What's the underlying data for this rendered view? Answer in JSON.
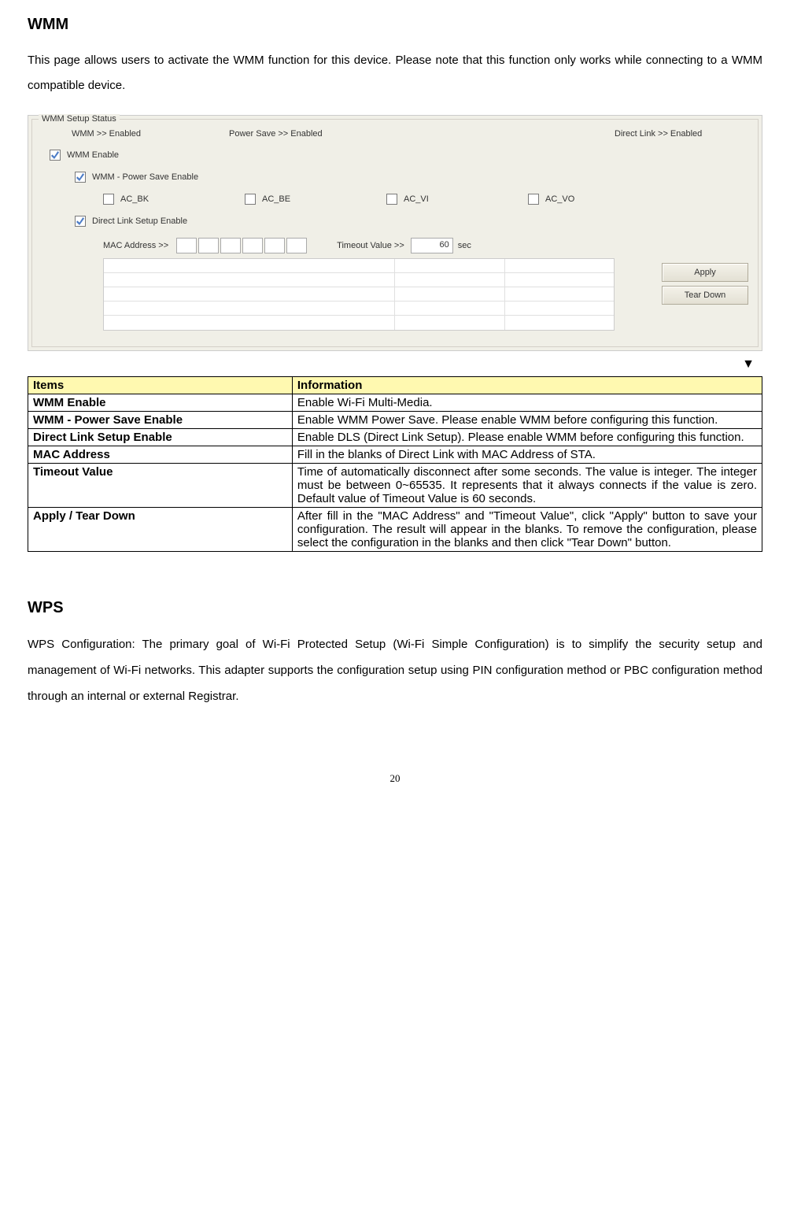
{
  "heading1": "WMM",
  "intro": "This page allows users to activate the WMM function for this device. Please note that this function only works while connecting to a WMM compatible device.",
  "panel": {
    "legend": "WMM Setup Status",
    "status": {
      "wmm": "WMM >> Enabled",
      "ps": "Power Save >> Enabled",
      "dl": "Direct Link >> Enabled"
    },
    "checkboxes": {
      "wmm_enable": {
        "label": "WMM Enable",
        "checked": true
      },
      "ps_enable": {
        "label": "WMM - Power Save Enable",
        "checked": true
      },
      "ac_bk": {
        "label": "AC_BK",
        "checked": false
      },
      "ac_be": {
        "label": "AC_BE",
        "checked": false
      },
      "ac_vi": {
        "label": "AC_VI",
        "checked": false
      },
      "ac_vo": {
        "label": "AC_VO",
        "checked": false
      },
      "dls_enable": {
        "label": "Direct Link Setup Enable",
        "checked": true
      }
    },
    "mac_label": "MAC Address >>",
    "timeout_label": "Timeout Value >>",
    "timeout_value": "60",
    "sec": "sec",
    "buttons": {
      "apply": "Apply",
      "teardown": "Tear Down"
    }
  },
  "arrow": "▼",
  "table": {
    "header": {
      "items": "Items",
      "info": "Information"
    },
    "rows": [
      {
        "item": "WMM Enable",
        "info": "Enable Wi-Fi Multi-Media."
      },
      {
        "item": "WMM - Power Save Enable",
        "info": "Enable WMM Power Save. Please enable WMM before configuring this function."
      },
      {
        "item": "Direct Link Setup Enable",
        "info": "Enable DLS (Direct Link Setup). Please enable WMM before configuring this function."
      },
      {
        "item": "MAC Address",
        "info": "Fill in the blanks of Direct Link with MAC Address of STA."
      },
      {
        "item": "Timeout Value",
        "info": "Time of automatically disconnect after some seconds. The value is integer. The integer must be between 0~65535. It represents that it always connects if the value is zero. Default value of Timeout Value is 60 seconds."
      },
      {
        "item": "Apply / Tear Down",
        "info": "After fill in the \"MAC Address\" and \"Timeout Value\", click \"Apply\" button to save your configuration. The result will appear in the blanks. To remove the configuration, please select the configuration in the blanks and then click \"Tear Down\" button."
      }
    ]
  },
  "heading2": "WPS",
  "wps_text": "WPS Configuration: The primary goal of Wi-Fi Protected Setup (Wi-Fi Simple Configuration) is to simplify the security setup and management of Wi-Fi networks. This adapter supports the configuration setup using PIN configuration method or PBC configuration method through an internal or external Registrar.",
  "page_number": "20",
  "colors": {
    "panel_bg": "#f0efe7",
    "header_bg": "#fff9b0",
    "border": "#000000"
  }
}
